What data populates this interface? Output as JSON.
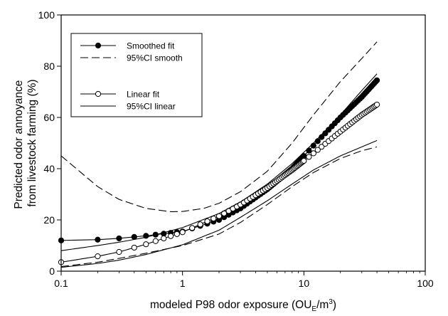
{
  "chart_data": {
    "type": "line",
    "title": "",
    "xlabel": {
      "main": "modeled P98 odor exposure (OU",
      "sub": "E",
      "mid": "/m",
      "sup": "3",
      "end": ")"
    },
    "ylabel": [
      "Predicted odor annoyance",
      "from livestock farming (%)"
    ],
    "xscale": "log",
    "xlim": [
      0.1,
      100
    ],
    "ylim": [
      0,
      100
    ],
    "xticks": [
      0.1,
      1,
      10,
      100
    ],
    "xtick_labels": [
      "0.1",
      "1",
      "10",
      "100"
    ],
    "yticks": [
      0,
      20,
      40,
      60,
      80,
      100
    ],
    "ytick_labels": [
      "0",
      "20",
      "40",
      "60",
      "80",
      "100"
    ],
    "grid": false,
    "legend_position": "top-left",
    "legend": [
      {
        "label": "Smoothed fit",
        "style": "line-filled-marker"
      },
      {
        "label": "95%CI smooth",
        "style": "dashed"
      },
      {
        "label": "Linear fit",
        "style": "line-open-marker"
      },
      {
        "label": "95%CI linear",
        "style": "solid"
      }
    ],
    "series": [
      {
        "style": "line-filled-marker",
        "x": [
          0.1,
          0.2,
          0.3,
          0.5,
          1,
          2,
          3,
          5,
          8,
          12,
          20,
          30,
          40
        ],
        "y": [
          12,
          12.3,
          12.8,
          13.8,
          15.5,
          20,
          24.5,
          32,
          40,
          49,
          60,
          68,
          74.5
        ]
      },
      {
        "style": "dashed",
        "x": [
          0.1,
          0.2,
          0.3,
          0.5,
          0.8,
          1,
          1.5,
          2,
          3,
          5,
          8,
          12,
          20,
          30,
          40
        ],
        "y": [
          45,
          33,
          28,
          24.5,
          23.2,
          23.3,
          24.5,
          26.5,
          31,
          39,
          50,
          61,
          74,
          83,
          89.5
        ]
      },
      {
        "style": "dashed",
        "x": [
          0.1,
          0.2,
          0.3,
          0.5,
          1,
          2,
          3,
          5,
          8,
          12,
          20,
          30,
          40
        ],
        "y": [
          1.8,
          3.5,
          5,
          7,
          10,
          14.5,
          19,
          26,
          33,
          38.5,
          44,
          47,
          48.5
        ]
      },
      {
        "style": "line-open-marker",
        "x": [
          0.1,
          0.2,
          0.3,
          0.5,
          1,
          2,
          3,
          5,
          8,
          12,
          20,
          30,
          40
        ],
        "y": [
          3.5,
          5.8,
          7.5,
          10.5,
          15.2,
          21.5,
          26,
          32.5,
          39.5,
          46,
          54.5,
          61,
          65
        ]
      },
      {
        "style": "solid",
        "x": [
          0.1,
          0.2,
          0.3,
          0.5,
          1,
          2,
          3,
          5,
          8,
          12,
          20,
          30,
          40
        ],
        "y": [
          8,
          10,
          11.3,
          13.2,
          17,
          22.5,
          27,
          34,
          42,
          50,
          61,
          70.5,
          77
        ]
      },
      {
        "style": "solid",
        "x": [
          0.1,
          0.2,
          0.3,
          0.5,
          1,
          2,
          3,
          5,
          8,
          12,
          20,
          30,
          40
        ],
        "y": [
          1.5,
          3,
          4.3,
          6.5,
          10.3,
          16,
          21,
          27.5,
          34,
          39.5,
          45,
          48.5,
          51
        ]
      }
    ]
  }
}
